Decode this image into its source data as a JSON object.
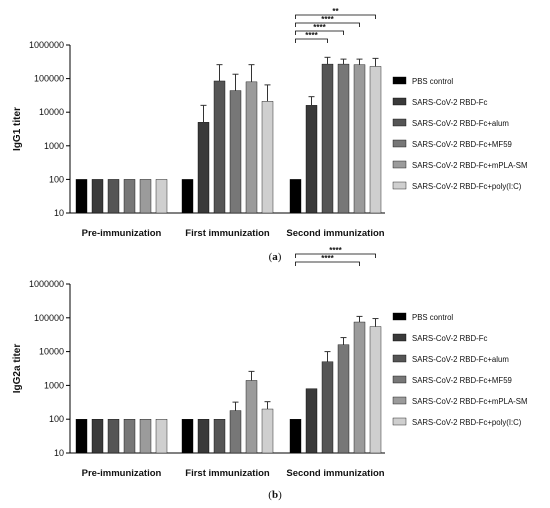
{
  "chart_data": [
    {
      "type": "bar",
      "panel_label": "a",
      "ylabel": "IgG1 titer",
      "yscale": "log",
      "ylim": [
        10,
        1000000
      ],
      "yticks": [
        "10",
        "100",
        "1000",
        "10000",
        "100000",
        "1000000"
      ],
      "groups": [
        "Pre-immunization",
        "First immunization",
        "Second immunization"
      ],
      "series": [
        {
          "name": "PBS control",
          "color": "#000000",
          "values": [
            100,
            100,
            100
          ],
          "errors": [
            0,
            0,
            0
          ]
        },
        {
          "name": "SARS-CoV-2 RBD-Fc",
          "color": "#3a3a3a",
          "values": [
            100,
            5000,
            16000
          ],
          "errors": [
            0,
            16000,
            29000
          ]
        },
        {
          "name": "SARS-CoV-2 RBD-Fc+alum",
          "color": "#555555",
          "values": [
            100,
            85000,
            270000
          ],
          "errors": [
            0,
            260000,
            430000
          ]
        },
        {
          "name": "SARS-CoV-2 RBD-Fc+MF59",
          "color": "#777777",
          "values": [
            100,
            44000,
            270000
          ],
          "errors": [
            0,
            135000,
            380000
          ]
        },
        {
          "name": "SARS-CoV-2 RBD-Fc+mPLA-SM",
          "color": "#9b9b9b",
          "values": [
            100,
            80000,
            260000
          ],
          "errors": [
            0,
            260000,
            380000
          ]
        },
        {
          "name": "SARS-CoV-2 RBD-Fc+poly(I:C)",
          "color": "#cfcfcf",
          "values": [
            100,
            21000,
            230000
          ],
          "errors": [
            0,
            65000,
            400000
          ]
        }
      ],
      "significance": [
        {
          "group": 2,
          "from": 0,
          "to": 2,
          "label": "****"
        },
        {
          "group": 2,
          "from": 0,
          "to": 3,
          "label": "****"
        },
        {
          "group": 2,
          "from": 0,
          "to": 4,
          "label": "****"
        },
        {
          "group": 2,
          "from": 0,
          "to": 5,
          "label": "**"
        }
      ]
    },
    {
      "type": "bar",
      "panel_label": "b",
      "ylabel": "IgG2a titer",
      "yscale": "log",
      "ylim": [
        10,
        1000000
      ],
      "yticks": [
        "10",
        "100",
        "1000",
        "10000",
        "100000",
        "1000000"
      ],
      "groups": [
        "Pre-immunization",
        "First immunization",
        "Second immunization"
      ],
      "series": [
        {
          "name": "PBS control",
          "color": "#000000",
          "values": [
            100,
            100,
            100
          ],
          "errors": [
            0,
            0,
            0
          ]
        },
        {
          "name": "SARS-CoV-2 RBD-Fc",
          "color": "#3a3a3a",
          "values": [
            100,
            100,
            800
          ],
          "errors": [
            0,
            0,
            0
          ]
        },
        {
          "name": "SARS-CoV-2 RBD-Fc+alum",
          "color": "#555555",
          "values": [
            100,
            100,
            5000
          ],
          "errors": [
            0,
            0,
            10000
          ]
        },
        {
          "name": "SARS-CoV-2 RBD-Fc+MF59",
          "color": "#777777",
          "values": [
            100,
            180,
            16000
          ],
          "errors": [
            0,
            320,
            26000
          ]
        },
        {
          "name": "SARS-CoV-2 RBD-Fc+mPLA-SM",
          "color": "#9b9b9b",
          "values": [
            100,
            1400,
            75000
          ],
          "errors": [
            0,
            2600,
            110000
          ]
        },
        {
          "name": "SARS-CoV-2 RBD-Fc+poly(I:C)",
          "color": "#cfcfcf",
          "values": [
            100,
            200,
            55000
          ],
          "errors": [
            0,
            330,
            95000
          ]
        }
      ],
      "significance": [
        {
          "group": 2,
          "from": 0,
          "to": 4,
          "label": "****"
        },
        {
          "group": 2,
          "from": 0,
          "to": 5,
          "label": "****"
        }
      ]
    }
  ],
  "captions": {
    "a": {
      "open": "(",
      "letter": "a",
      "close": ")"
    },
    "b": {
      "open": "(",
      "letter": "b",
      "close": ")"
    }
  }
}
